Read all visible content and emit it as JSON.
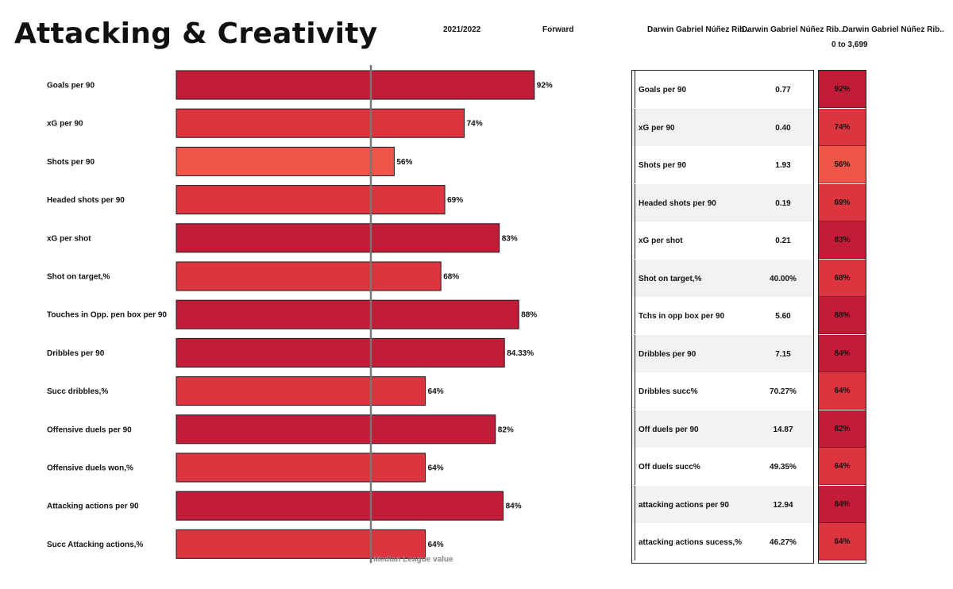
{
  "header": {
    "title": "Attacking & Creativity",
    "season": "2021/2022",
    "position": "Forward",
    "player_col1": "Darwin Gabriel Núñez Rib..",
    "player_col2": "Darwin Gabriel Núñez Rib..",
    "player_col3": "Darwin Gabriel Núñez Rib..",
    "minutes_range": "0 to 3,699"
  },
  "colors": {
    "dark": "#c21c38",
    "mid": "#dc3540",
    "light": "#ef5548",
    "median_line": "#777777"
  },
  "chart_data": {
    "type": "bar",
    "orientation": "horizontal",
    "title": "Attacking & Creativity",
    "xlabel": "",
    "ylabel": "",
    "xlim": [
      0,
      100
    ],
    "median_value": 50,
    "median_label": "Median League value",
    "categories": [
      "Goals per 90",
      "xG per 90",
      "Shots per 90",
      "Headed shots per 90",
      "xG per shot",
      "Shot on target,%",
      "Touches in Opp. pen box per 90",
      "Dribbles per 90",
      "Succ dribbles,%",
      "Offensive duels per 90",
      "Offensive duels won,%",
      "Attacking actions per 90",
      "Succ Attacking actions,%"
    ],
    "values": [
      92,
      74,
      56,
      69,
      83,
      68,
      88,
      84.33,
      64,
      82,
      64,
      84,
      64
    ],
    "value_labels": [
      "92%",
      "74%",
      "56%",
      "69%",
      "83%",
      "68%",
      "88%",
      "84.33%",
      "64%",
      "82%",
      "64%",
      "84%",
      "64%"
    ]
  },
  "table": {
    "rows": [
      {
        "metric": "Goals per 90",
        "value": "0.77",
        "pct": "92%",
        "pct_num": 92
      },
      {
        "metric": "xG per 90",
        "value": "0.40",
        "pct": "74%",
        "pct_num": 74
      },
      {
        "metric": "Shots per 90",
        "value": "1.93",
        "pct": "56%",
        "pct_num": 56
      },
      {
        "metric": "Headed shots per 90",
        "value": "0.19",
        "pct": "69%",
        "pct_num": 69
      },
      {
        "metric": "xG per shot",
        "value": "0.21",
        "pct": "83%",
        "pct_num": 83
      },
      {
        "metric": "Shot on target,%",
        "value": "40.00%",
        "pct": "68%",
        "pct_num": 68
      },
      {
        "metric": "Tchs in opp box per 90",
        "value": "5.60",
        "pct": "88%",
        "pct_num": 88
      },
      {
        "metric": "Dribbles per 90",
        "value": "7.15",
        "pct": "84%",
        "pct_num": 84
      },
      {
        "metric": "Dribbles succ%",
        "value": "70.27%",
        "pct": "64%",
        "pct_num": 64
      },
      {
        "metric": "Off duels per 90",
        "value": "14.87",
        "pct": "82%",
        "pct_num": 82
      },
      {
        "metric": "Off duels succ%",
        "value": "49.35%",
        "pct": "64%",
        "pct_num": 64
      },
      {
        "metric": "attacking actions per 90",
        "value": "12.94",
        "pct": "84%",
        "pct_num": 84
      },
      {
        "metric": "attacking actions sucess,%",
        "value": "46.27%",
        "pct": "64%",
        "pct_num": 64
      }
    ]
  }
}
